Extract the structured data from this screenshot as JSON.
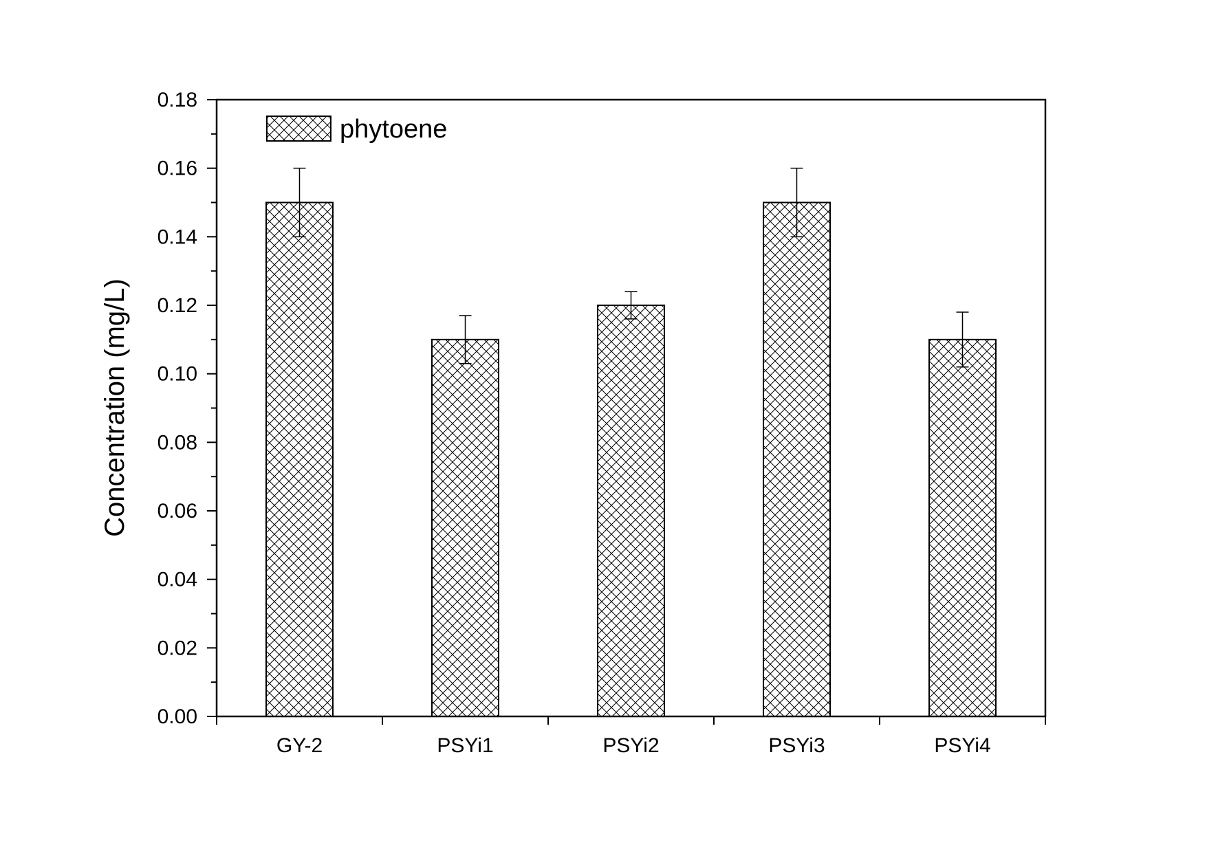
{
  "chart_data": {
    "type": "bar",
    "categories": [
      "GY-2",
      "PSYi1",
      "PSYi2",
      "PSYi3",
      "PSYi4"
    ],
    "series": [
      {
        "name": "phytoene",
        "values": [
          0.15,
          0.11,
          0.12,
          0.15,
          0.11
        ],
        "errors": [
          0.01,
          0.007,
          0.004,
          0.01,
          0.008
        ]
      }
    ],
    "xlabel": "",
    "ylabel": "Concentration (mg/L)",
    "ylim": [
      0,
      0.18
    ],
    "yticks": [
      "0.00",
      "0.02",
      "0.04",
      "0.06",
      "0.08",
      "0.10",
      "0.12",
      "0.14",
      "0.16",
      "0.18"
    ],
    "grid": false,
    "legend_position": "top-left",
    "bar_fill": "crosshatch",
    "colors": {
      "stroke": "#000000",
      "background": "#ffffff"
    }
  }
}
